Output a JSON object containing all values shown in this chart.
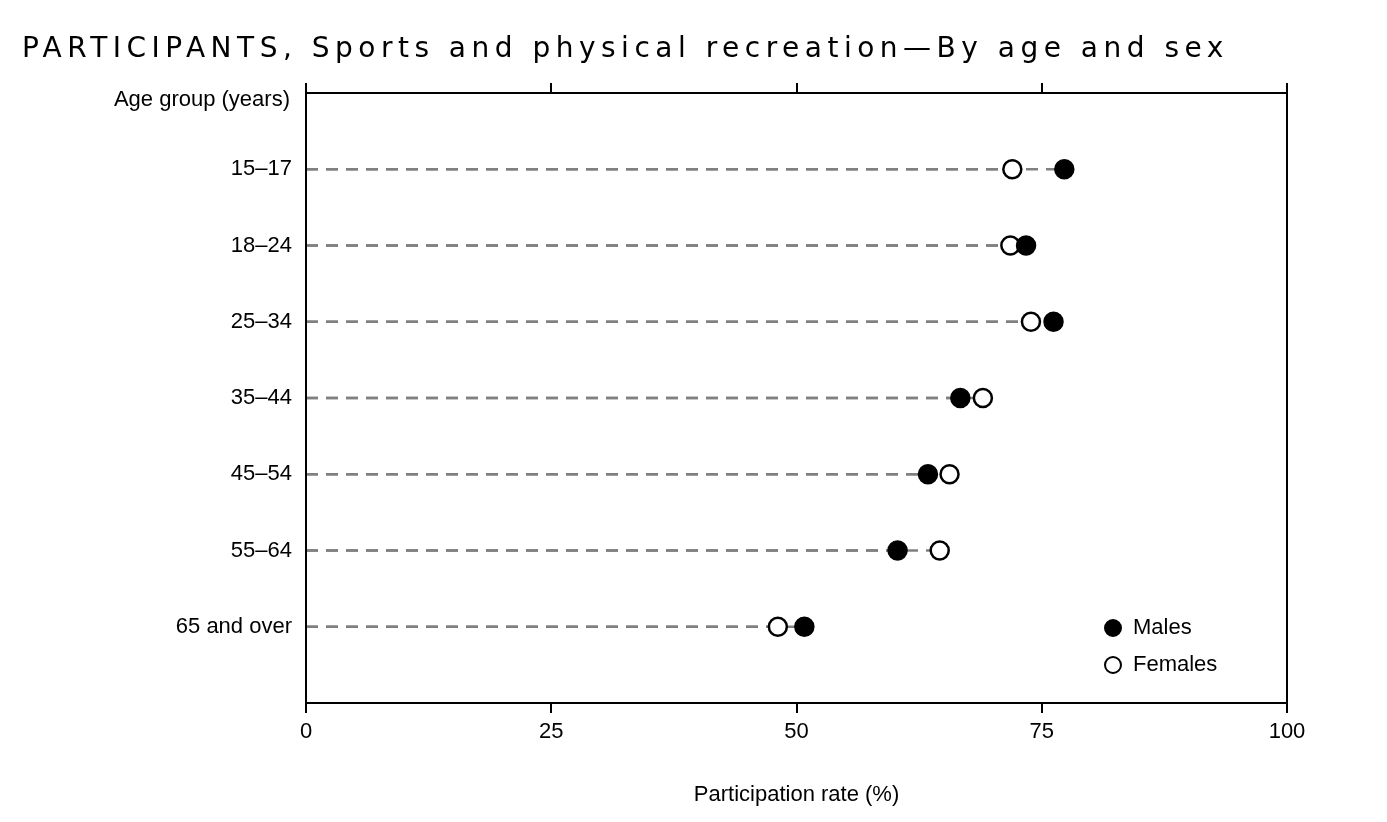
{
  "chart_data": {
    "type": "lollipop",
    "orientation": "horizontal",
    "title": "PARTICIPANTS, Sports and physical recreation—By age and sex",
    "ylabel": "Age group (years)",
    "xlabel": "Participation rate (%)",
    "categories": [
      "15–17",
      "18–24",
      "25–34",
      "35–44",
      "45–54",
      "55–64",
      "65 and over"
    ],
    "series": [
      {
        "name": "Males",
        "color": "#000000",
        "values": [
          77.3,
          73.4,
          76.2,
          66.7,
          63.4,
          60.3,
          50.8
        ]
      },
      {
        "name": "Females",
        "color": "#ffffff",
        "values": [
          72.0,
          71.8,
          73.9,
          69.0,
          65.6,
          64.6,
          48.1
        ]
      }
    ],
    "xlim": [
      0,
      100
    ],
    "xticks": [
      0,
      25,
      50,
      75,
      100
    ],
    "grid": false,
    "legend": "bottom right",
    "marker": "circle",
    "line_style": "dashed"
  }
}
